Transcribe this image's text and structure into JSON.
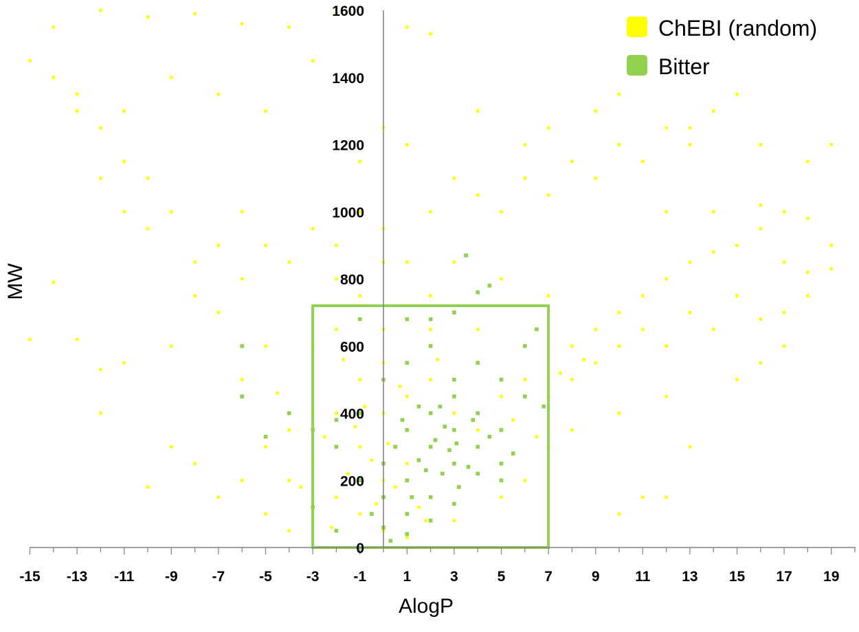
{
  "chart_data": {
    "type": "scatter",
    "title": "",
    "xlabel": "AlogP",
    "ylabel": "MW",
    "xlim": [
      -15,
      20
    ],
    "ylim": [
      0,
      1600
    ],
    "x_ticks": [
      "-15",
      "-13",
      "-11",
      "-9",
      "-7",
      "-5",
      "-3",
      "-1",
      "1",
      "3",
      "5",
      "7",
      "9",
      "11",
      "13",
      "15",
      "17",
      "19"
    ],
    "y_ticks": [
      "0",
      "200",
      "400",
      "600",
      "800",
      "1000",
      "1200",
      "1400",
      "1600"
    ],
    "grid": false,
    "legend_position": "top-right",
    "highlight_box": {
      "x": [
        -3,
        7
      ],
      "y": [
        0,
        720
      ],
      "color": "#92d050"
    },
    "series": [
      {
        "name": "ChEBI (random)",
        "color": "#ffff00",
        "marker": "circle",
        "points": [
          [
            -2,
            150
          ],
          [
            -1,
            100
          ],
          [
            0,
            200
          ],
          [
            1,
            250
          ],
          [
            2,
            300
          ],
          [
            -1,
            300
          ],
          [
            0,
            400
          ],
          [
            1,
            350
          ],
          [
            3,
            400
          ],
          [
            2,
            500
          ],
          [
            -3,
            250
          ],
          [
            -4,
            200
          ],
          [
            -2,
            400
          ],
          [
            -1,
            500
          ],
          [
            0,
            550
          ],
          [
            1,
            450
          ],
          [
            3,
            250
          ],
          [
            4,
            350
          ],
          [
            5,
            450
          ],
          [
            4,
            550
          ],
          [
            6,
            500
          ],
          [
            7,
            450
          ],
          [
            8,
            500
          ],
          [
            -3,
            400
          ],
          [
            -4,
            350
          ],
          [
            -5,
            300
          ],
          [
            -6,
            500
          ],
          [
            -5,
            600
          ],
          [
            -3,
            600
          ],
          [
            -2,
            650
          ],
          [
            0,
            650
          ],
          [
            2,
            650
          ],
          [
            4,
            650
          ],
          [
            6,
            600
          ],
          [
            8,
            600
          ],
          [
            9,
            650
          ],
          [
            10,
            700
          ],
          [
            11,
            750
          ],
          [
            12,
            800
          ],
          [
            13,
            850
          ],
          [
            14,
            880
          ],
          [
            15,
            900
          ],
          [
            16,
            950
          ],
          [
            17,
            850
          ],
          [
            18,
            820
          ],
          [
            19,
            830
          ],
          [
            11,
            650
          ],
          [
            13,
            700
          ],
          [
            15,
            750
          ],
          [
            17,
            700
          ],
          [
            9,
            550
          ],
          [
            10,
            600
          ],
          [
            12,
            600
          ],
          [
            14,
            650
          ],
          [
            16,
            680
          ],
          [
            18,
            750
          ],
          [
            -7,
            700
          ],
          [
            -8,
            750
          ],
          [
            -6,
            800
          ],
          [
            -4,
            850
          ],
          [
            -2,
            900
          ],
          [
            0,
            950
          ],
          [
            -1,
            1000
          ],
          [
            -3,
            950
          ],
          [
            -5,
            900
          ],
          [
            -7,
            900
          ],
          [
            -9,
            1000
          ],
          [
            -10,
            1100
          ],
          [
            -11,
            1150
          ],
          [
            -12,
            1250
          ],
          [
            -13,
            1300
          ],
          [
            -14,
            1400
          ],
          [
            -15,
            1450
          ],
          [
            -13,
            1350
          ],
          [
            -12,
            1100
          ],
          [
            -10,
            950
          ],
          [
            -8,
            850
          ],
          [
            -11,
            1000
          ],
          [
            -6,
            1000
          ],
          [
            2,
            1000
          ],
          [
            4,
            1050
          ],
          [
            6,
            1100
          ],
          [
            8,
            1150
          ],
          [
            10,
            1200
          ],
          [
            12,
            1250
          ],
          [
            14,
            1300
          ],
          [
            5,
            1000
          ],
          [
            7,
            1050
          ],
          [
            9,
            1100
          ],
          [
            11,
            1150
          ],
          [
            13,
            1200
          ],
          [
            3,
            1100
          ],
          [
            6,
            1200
          ],
          [
            9,
            1300
          ],
          [
            1,
            850
          ],
          [
            3,
            850
          ],
          [
            5,
            800
          ],
          [
            7,
            750
          ],
          [
            2,
            750
          ],
          [
            -1,
            750
          ],
          [
            -2,
            800
          ],
          [
            0,
            850
          ],
          [
            -15,
            620
          ],
          [
            -14,
            790
          ],
          [
            -13,
            620
          ],
          [
            -12,
            400
          ],
          [
            -10,
            180
          ],
          [
            -9,
            300
          ],
          [
            -8,
            250
          ],
          [
            -7,
            150
          ],
          [
            -11,
            550
          ],
          [
            -9,
            600
          ],
          [
            -12,
            530
          ],
          [
            -6,
            200
          ],
          [
            -5,
            100
          ],
          [
            -4,
            50
          ],
          [
            -3,
            80
          ],
          [
            0,
            50
          ],
          [
            1,
            30
          ],
          [
            3,
            80
          ],
          [
            5,
            150
          ],
          [
            6,
            200
          ],
          [
            7,
            300
          ],
          [
            8,
            350
          ],
          [
            10,
            400
          ],
          [
            12,
            450
          ],
          [
            13,
            300
          ],
          [
            15,
            500
          ],
          [
            16,
            550
          ],
          [
            17,
            600
          ],
          [
            10,
            100
          ],
          [
            11,
            150
          ],
          [
            12,
            150
          ],
          [
            -14,
            1550
          ],
          [
            -12,
            1600
          ],
          [
            -10,
            1580
          ],
          [
            -8,
            1590
          ],
          [
            -6,
            1560
          ],
          [
            -4,
            1550
          ],
          [
            -2,
            1590
          ],
          [
            1,
            1550
          ],
          [
            2,
            1530
          ],
          [
            -9,
            1400
          ],
          [
            -7,
            1350
          ],
          [
            -5,
            1300
          ],
          [
            -3,
            1450
          ],
          [
            0,
            1250
          ],
          [
            -11,
            1300
          ],
          [
            -1,
            1150
          ],
          [
            1,
            1200
          ],
          [
            4,
            1300
          ],
          [
            7,
            1250
          ],
          [
            10,
            1350
          ],
          [
            13,
            1250
          ],
          [
            15,
            1350
          ],
          [
            16,
            1200
          ],
          [
            18,
            1150
          ],
          [
            19,
            1200
          ],
          [
            17,
            1000
          ],
          [
            18,
            980
          ],
          [
            19,
            900
          ],
          [
            14,
            1000
          ],
          [
            16,
            1020
          ],
          [
            12,
            1000
          ],
          [
            -1.5,
            220
          ],
          [
            -0.5,
            260
          ],
          [
            0.5,
            180
          ],
          [
            1.5,
            120
          ],
          [
            -2.5,
            330
          ],
          [
            -3.5,
            180
          ],
          [
            -0.8,
            420
          ],
          [
            0.7,
            480
          ],
          [
            2.3,
            560
          ],
          [
            -1.7,
            560
          ],
          [
            -4.5,
            460
          ],
          [
            5.5,
            380
          ],
          [
            6.5,
            330
          ],
          [
            7.5,
            520
          ],
          [
            8.5,
            560
          ],
          [
            -2.2,
            60
          ],
          [
            -0.3,
            130
          ],
          [
            1.8,
            80
          ],
          [
            0.2,
            310
          ],
          [
            -1.2,
            360
          ]
        ]
      },
      {
        "name": "Bitter",
        "color": "#92d050",
        "marker": "square",
        "points": [
          [
            2,
            300
          ],
          [
            3,
            250
          ],
          [
            1,
            200
          ],
          [
            2,
            150
          ],
          [
            3,
            350
          ],
          [
            4,
            300
          ],
          [
            1,
            350
          ],
          [
            0,
            250
          ],
          [
            2,
            400
          ],
          [
            3,
            450
          ],
          [
            4,
            400
          ],
          [
            5,
            350
          ],
          [
            1,
            100
          ],
          [
            0,
            150
          ],
          [
            -1,
            200
          ],
          [
            -2,
            300
          ],
          [
            -1,
            400
          ],
          [
            0,
            500
          ],
          [
            1,
            550
          ],
          [
            2,
            600
          ],
          [
            3,
            500
          ],
          [
            4,
            550
          ],
          [
            5,
            500
          ],
          [
            6,
            450
          ],
          [
            6,
            600
          ],
          [
            6.5,
            650
          ],
          [
            3,
            700
          ],
          [
            2,
            680
          ],
          [
            4,
            760
          ],
          [
            4.5,
            780
          ],
          [
            3.5,
            870
          ],
          [
            1,
            680
          ],
          [
            -1,
            680
          ],
          [
            -2,
            380
          ],
          [
            -3,
            350
          ],
          [
            -4,
            400
          ],
          [
            -5,
            330
          ],
          [
            -6,
            450
          ],
          [
            -6,
            600
          ],
          [
            -3,
            120
          ],
          [
            -2,
            50
          ],
          [
            0,
            60
          ],
          [
            1,
            40
          ],
          [
            2,
            80
          ],
          [
            3,
            130
          ],
          [
            4,
            220
          ],
          [
            5,
            250
          ],
          [
            5,
            200
          ],
          [
            2.5,
            220
          ],
          [
            1.5,
            260
          ],
          [
            2.2,
            320
          ],
          [
            3.2,
            180
          ],
          [
            1.8,
            230
          ],
          [
            2.8,
            290
          ],
          [
            0.5,
            300
          ],
          [
            1.2,
            150
          ],
          [
            4.5,
            330
          ],
          [
            3.8,
            380
          ],
          [
            2.4,
            420
          ],
          [
            0.8,
            380
          ],
          [
            5.5,
            280
          ],
          [
            6.8,
            420
          ],
          [
            -0.5,
            100
          ],
          [
            0.3,
            20
          ],
          [
            1.5,
            420
          ],
          [
            3.1,
            310
          ],
          [
            2.6,
            360
          ],
          [
            3.6,
            240
          ]
        ]
      }
    ]
  }
}
